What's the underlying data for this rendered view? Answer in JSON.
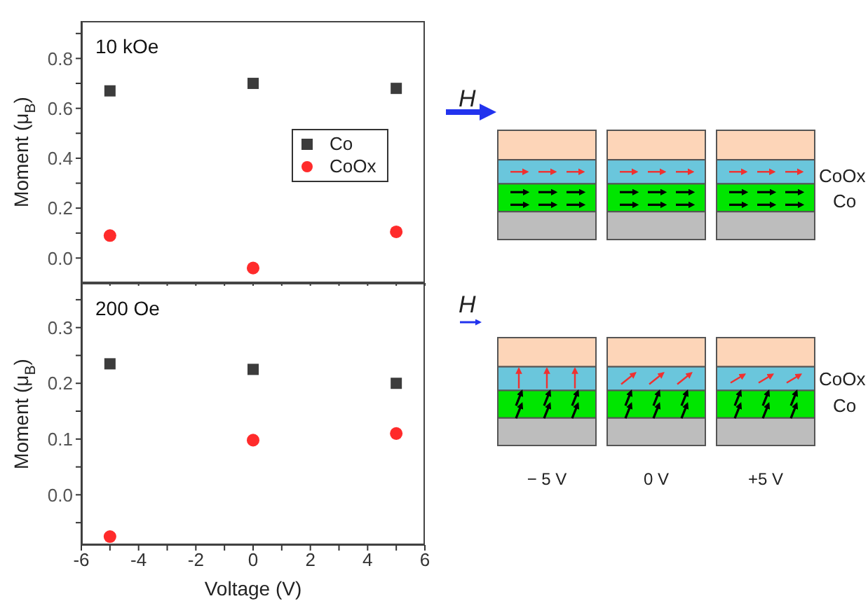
{
  "chart_data": [
    {
      "type": "scatter",
      "ylabel": "Moment (μ$_{B}$)",
      "annotations": [
        "10 kOe"
      ],
      "x": [
        -5,
        0,
        5
      ],
      "series": [
        {
          "name": "Co",
          "color": "#3c3c3c",
          "marker": "square",
          "values": [
            0.67,
            0.7,
            0.68
          ]
        },
        {
          "name": "CoOx",
          "color": "#ff2b2b",
          "marker": "circle",
          "values": [
            0.09,
            -0.04,
            0.105
          ]
        }
      ],
      "xlim": [
        -6,
        6
      ],
      "xticks": [
        -6,
        {
          "value": -5,
          "label": null
        },
        -4,
        {
          "value": -3,
          "label": null
        },
        -2,
        {
          "value": -1,
          "label": null
        },
        0,
        {
          "value": 1,
          "label": null
        },
        2,
        {
          "value": 3,
          "label": null
        },
        4,
        {
          "value": 5,
          "label": null
        },
        6
      ],
      "ylim": [
        -0.1,
        0.95
      ],
      "yticks": [
        {
          "value": 0,
          "label": "0.0"
        },
        {
          "value": 0.1,
          "label": null
        },
        {
          "value": 0.2,
          "label": "0.2"
        },
        {
          "value": 0.3,
          "label": null
        },
        {
          "value": 0.4,
          "label": "0.4"
        },
        {
          "value": 0.5,
          "label": null
        },
        {
          "value": 0.6,
          "label": "0.6"
        },
        {
          "value": 0.7,
          "label": null
        },
        {
          "value": 0.8,
          "label": "0.8"
        },
        {
          "value": 0.9,
          "label": null
        }
      ],
      "tick_labels": "y",
      "grid": false,
      "legend": "right"
    },
    {
      "type": "scatter",
      "xlabel": "Voltage (V)",
      "ylabel": "Moment (μ$_{B}$)",
      "annotations": [
        "200 Oe"
      ],
      "x": [
        -5,
        0,
        5
      ],
      "series": [
        {
          "color": "#3c3c3c",
          "marker": "square",
          "values": [
            0.235,
            0.225,
            0.2
          ]
        },
        {
          "color": "#ff2b2b",
          "marker": "circle",
          "values": [
            -0.075,
            0.098,
            0.11
          ]
        }
      ],
      "xlim": [
        -6,
        6
      ],
      "xticks": [
        -6,
        {
          "value": -5,
          "label": null
        },
        -4,
        {
          "value": -3,
          "label": null
        },
        -2,
        {
          "value": -1,
          "label": null
        },
        0,
        {
          "value": 1,
          "label": null
        },
        2,
        {
          "value": 3,
          "label": null
        },
        4,
        {
          "value": 5,
          "label": null
        },
        6
      ],
      "ylim": [
        -0.09,
        0.38
      ],
      "yticks": [
        {
          "value": -0.05,
          "label": null
        },
        {
          "value": 0,
          "label": "0.0"
        },
        {
          "value": 0.05,
          "label": null
        },
        {
          "value": 0.1,
          "label": "0.1"
        },
        {
          "value": 0.15,
          "label": null
        },
        {
          "value": 0.2,
          "label": "0.2"
        },
        {
          "value": 0.25,
          "label": null
        },
        {
          "value": 0.3,
          "label": "0.3"
        },
        {
          "value": 0.35,
          "label": null
        }
      ],
      "grid": false,
      "legend": false
    },
    {
      "type": "other",
      "annotations": [
        "H",
        "CoOx",
        "Co",
        "H",
        "CoOx",
        "Co",
        "− 5 V",
        "0 V",
        "+5 V"
      ]
    }
  ]
}
